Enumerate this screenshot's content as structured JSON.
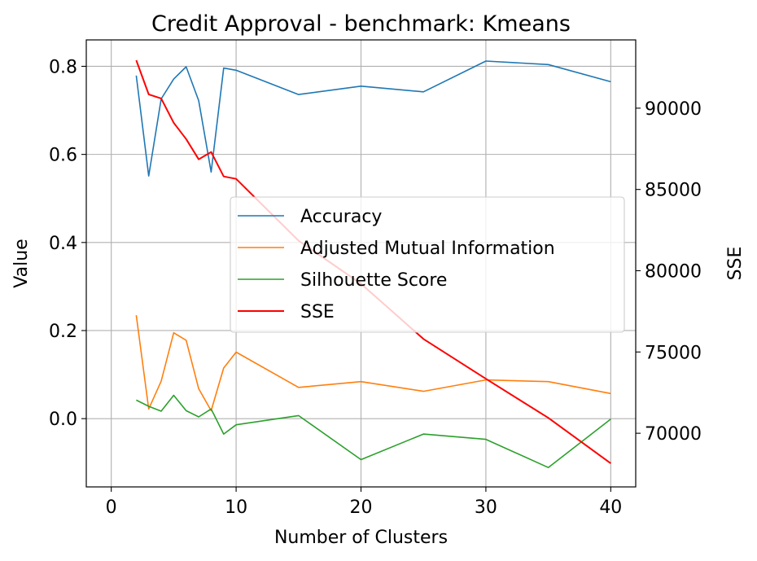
{
  "chart_data": {
    "type": "line",
    "title": "Credit Approval - benchmark: Kmeans",
    "xlabel": "Number of Clusters",
    "ylabel": "Value",
    "y2label": "SSE",
    "xlim": [
      -2,
      42
    ],
    "ylim": [
      -0.155,
      0.86
    ],
    "y2lim": [
      66700,
      94200
    ],
    "xticks": [
      0,
      10,
      20,
      30,
      40
    ],
    "yticks": [
      0.0,
      0.2,
      0.4,
      0.6,
      0.8
    ],
    "y2ticks": [
      70000,
      75000,
      80000,
      85000,
      90000
    ],
    "xtick_labels": [
      "0",
      "10",
      "20",
      "30",
      "40"
    ],
    "ytick_labels": [
      "0.0",
      "0.2",
      "0.4",
      "0.6",
      "0.8"
    ],
    "y2tick_labels": [
      "70000",
      "75000",
      "80000",
      "85000",
      "90000"
    ],
    "grid": true,
    "legend_position": "center-right",
    "x": [
      2,
      3,
      4,
      5,
      6,
      7,
      8,
      9,
      10,
      15,
      20,
      25,
      30,
      35,
      40
    ],
    "series": [
      {
        "name": "Accuracy",
        "axis": "left",
        "color": "#1f77b4",
        "values": [
          0.779,
          0.551,
          0.726,
          0.771,
          0.799,
          0.722,
          0.56,
          0.796,
          0.791,
          0.736,
          0.755,
          0.742,
          0.812,
          0.804,
          0.765
        ]
      },
      {
        "name": "Adjusted Mutual Information",
        "axis": "left",
        "color": "#ff7f0e",
        "values": [
          0.235,
          0.022,
          0.085,
          0.195,
          0.178,
          0.068,
          0.018,
          0.115,
          0.151,
          0.071,
          0.084,
          0.062,
          0.088,
          0.084,
          0.057
        ]
      },
      {
        "name": "Silhouette Score",
        "axis": "left",
        "color": "#2ca02c",
        "values": [
          0.042,
          0.028,
          0.017,
          0.053,
          0.018,
          0.004,
          0.022,
          -0.035,
          -0.014,
          0.007,
          -0.093,
          -0.035,
          -0.047,
          -0.111,
          -0.001
        ]
      },
      {
        "name": "SSE",
        "axis": "right",
        "color": "#ff0000",
        "values": [
          92950,
          90850,
          90600,
          89100,
          88100,
          86850,
          87300,
          85800,
          85650,
          81850,
          79200,
          75800,
          73350,
          70950,
          68150
        ]
      }
    ]
  }
}
